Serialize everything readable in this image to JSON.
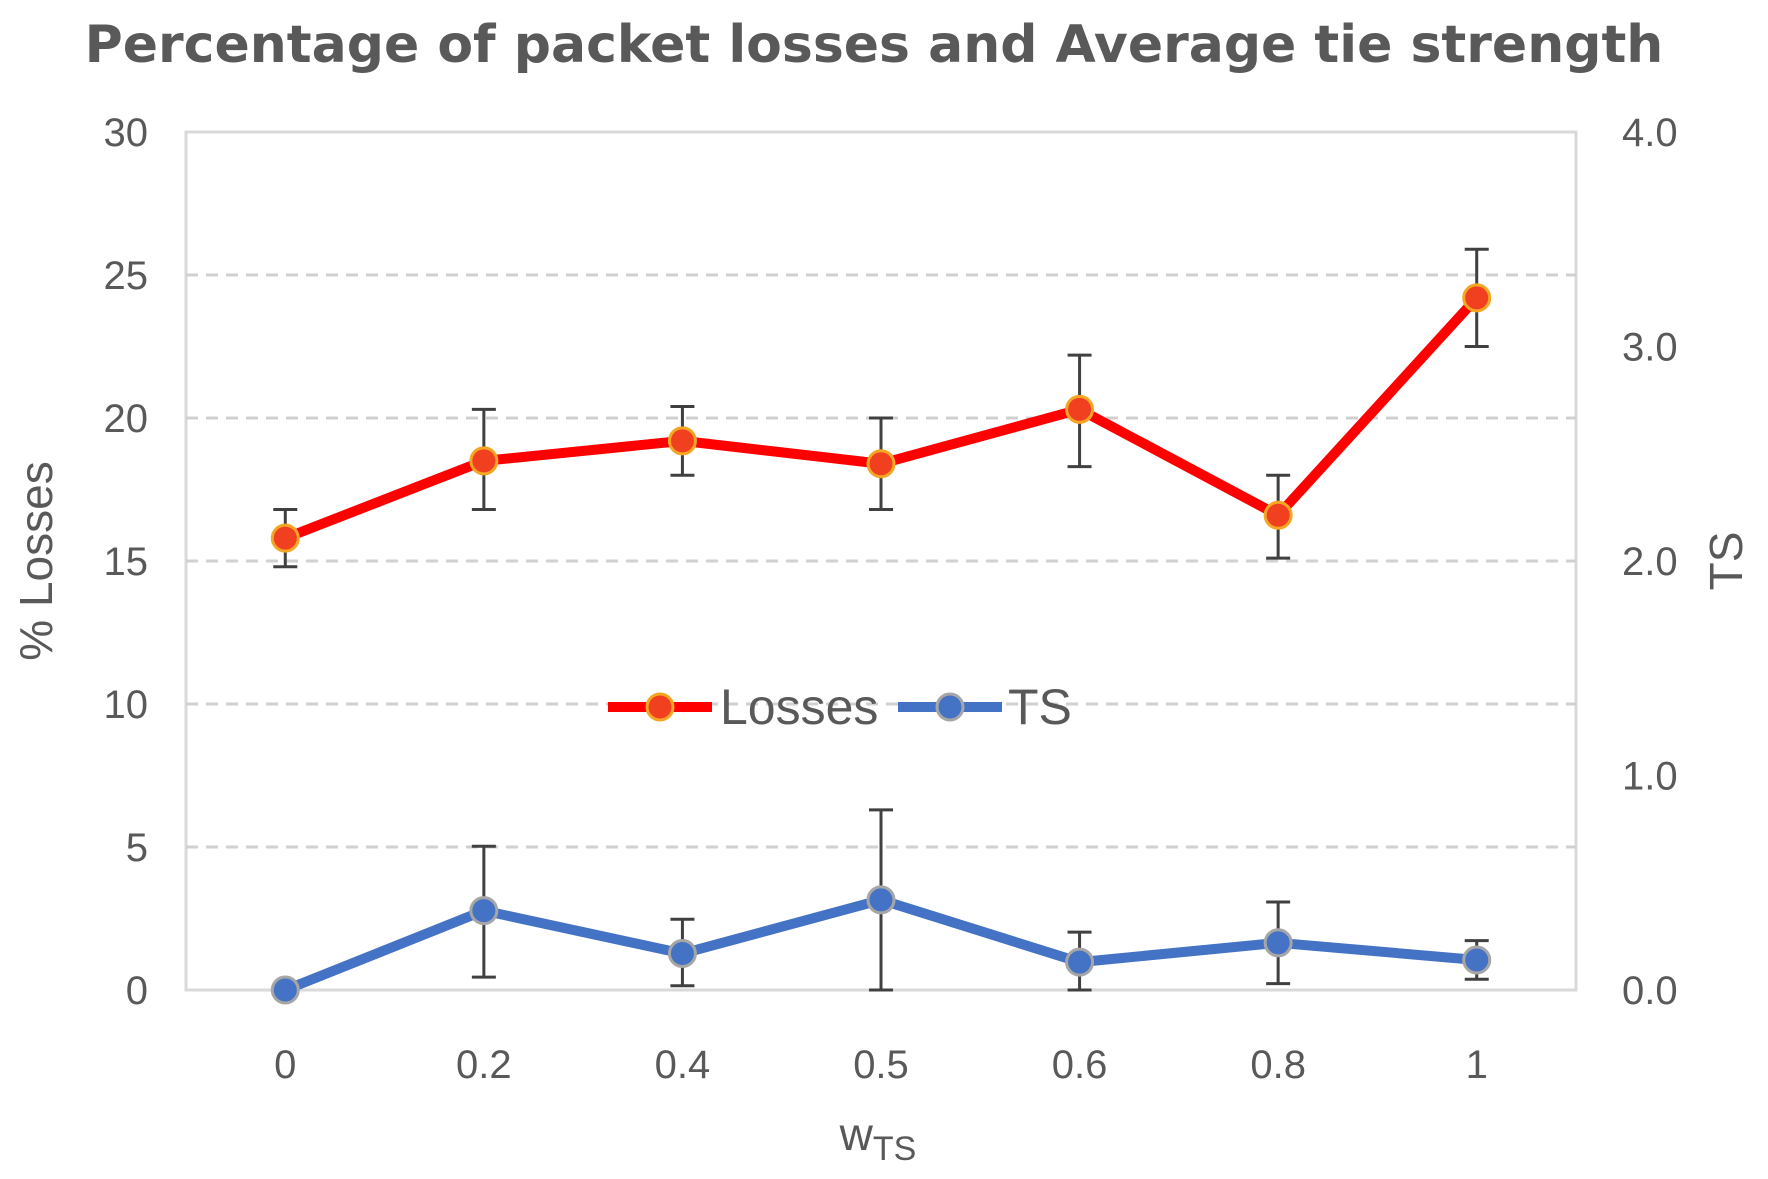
{
  "chart_data": {
    "type": "line",
    "title": "Percentage of packet losses and Average tie strength",
    "x": [
      "0",
      "0.2",
      "0.4",
      "0.5",
      "0.6",
      "0.8",
      "1"
    ],
    "xlabel": {
      "main": "w",
      "sub": "TS"
    },
    "ylabel": "% Losses",
    "y2label": "TS",
    "ylim": [
      0,
      30
    ],
    "y2lim": [
      0.0,
      4.0
    ],
    "yticks": [
      "0",
      "5",
      "10",
      "15",
      "20",
      "25",
      "30"
    ],
    "y2ticks": [
      "0.0",
      "1.0",
      "2.0",
      "3.0",
      "4.0"
    ],
    "grid": "horizontal dashed",
    "legend_position": "center",
    "series": [
      {
        "name": "Losses",
        "axis": "left",
        "color": "#ff0000",
        "marker_color": "#f04020",
        "marker_edge": "#f5a623",
        "values": [
          15.8,
          18.5,
          19.2,
          18.4,
          20.3,
          16.6,
          24.2
        ],
        "err_low": [
          14.8,
          16.8,
          18.0,
          16.8,
          18.3,
          15.1,
          22.5
        ],
        "err_high": [
          16.8,
          20.3,
          20.4,
          20.0,
          22.2,
          18.0,
          25.9
        ]
      },
      {
        "name": "TS",
        "axis": "right",
        "color": "#4472c4",
        "marker_color": "#4472c4",
        "marker_edge": "#a6a6a6",
        "values": [
          0.0,
          0.37,
          0.17,
          0.42,
          0.13,
          0.22,
          0.14
        ],
        "err_low": [
          0.0,
          0.06,
          0.02,
          0.0,
          0.0,
          0.03,
          0.05
        ],
        "err_high": [
          0.0,
          0.67,
          0.33,
          0.84,
          0.27,
          0.41,
          0.23
        ]
      }
    ]
  }
}
